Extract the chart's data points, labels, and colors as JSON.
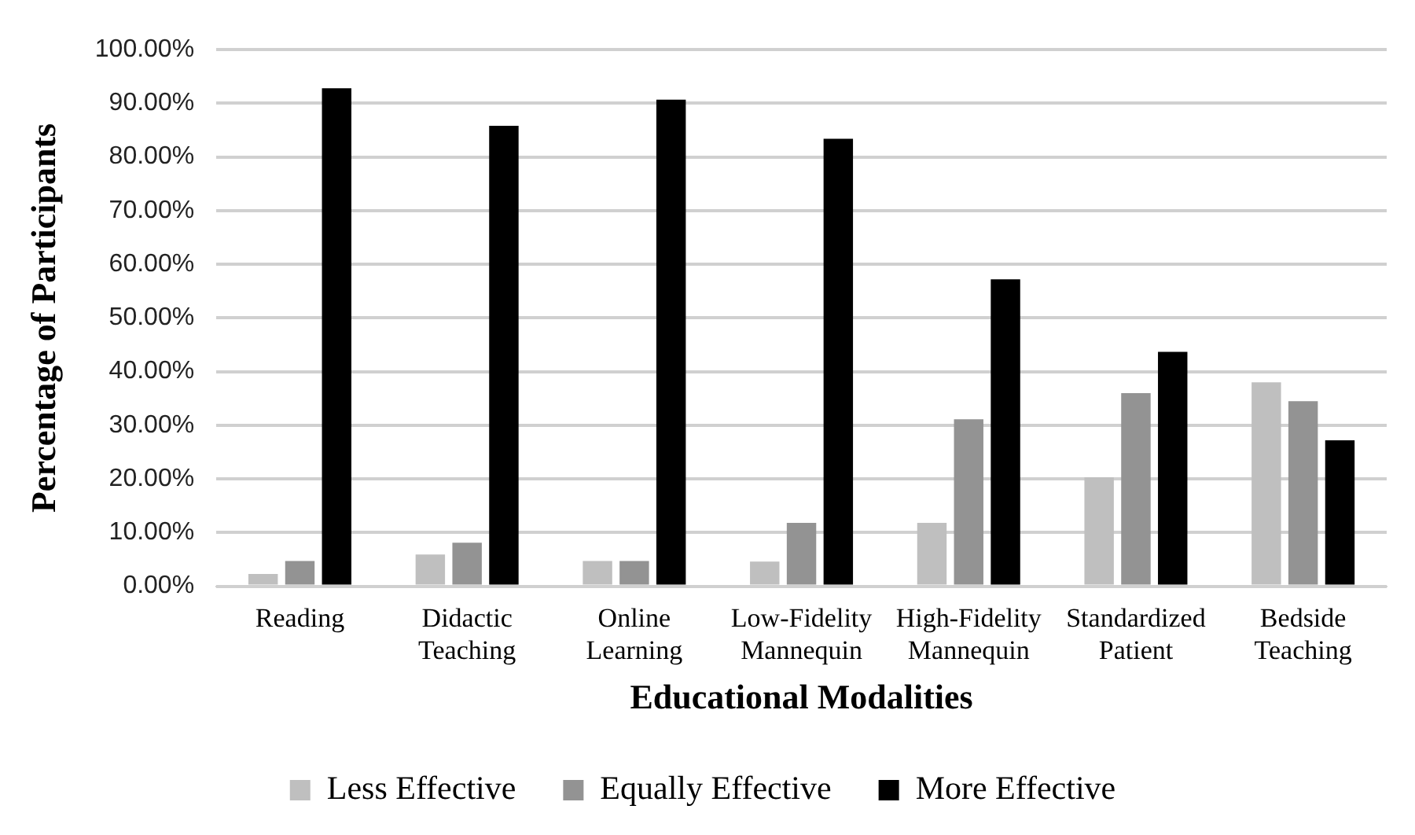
{
  "chart_data": {
    "type": "bar",
    "xlabel": "Educational Modalities",
    "ylabel": "Percentage of Participants",
    "categories": [
      "Reading",
      "Didactic Teaching",
      "Online Learning",
      "Low-Fidelity Mannequin",
      "High-Fidelity Mannequin",
      "Standardized Patient",
      "Bedside Teaching"
    ],
    "series": [
      {
        "name": "Less Effective",
        "color": "#bfbfbf",
        "values": [
          2.3,
          5.9,
          4.7,
          4.6,
          11.8,
          20.3,
          38.0
        ]
      },
      {
        "name": "Equally Effective",
        "color": "#939393",
        "values": [
          4.7,
          8.1,
          4.7,
          11.8,
          31.1,
          36.0,
          34.5
        ]
      },
      {
        "name": "More Effective",
        "color": "#000000",
        "values": [
          92.8,
          85.8,
          90.7,
          83.4,
          57.2,
          43.7,
          27.2
        ]
      }
    ],
    "ylim": [
      0,
      100
    ],
    "yticks": [
      {
        "value": 0,
        "label": "0.00%"
      },
      {
        "value": 10,
        "label": "10.00%"
      },
      {
        "value": 20,
        "label": "20.00%"
      },
      {
        "value": 30,
        "label": "30.00%"
      },
      {
        "value": 40,
        "label": "40.00%"
      },
      {
        "value": 50,
        "label": "50.00%"
      },
      {
        "value": 60,
        "label": "60.00%"
      },
      {
        "value": 70,
        "label": "70.00%"
      },
      {
        "value": 80,
        "label": "80.00%"
      },
      {
        "value": 90,
        "label": "90.00%"
      },
      {
        "value": 100,
        "label": "100.00%"
      }
    ],
    "grid": "y",
    "legend": "bottom"
  }
}
